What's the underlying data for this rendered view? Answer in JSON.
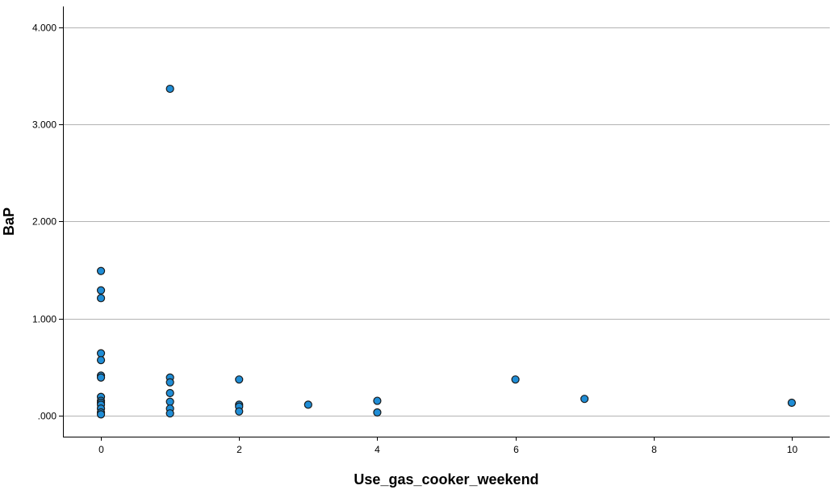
{
  "chart_data": {
    "type": "scatter",
    "title": "",
    "xlabel": "Use_gas_cooker_weekend",
    "ylabel": "BaP",
    "xlim": [
      -0.55,
      10.55
    ],
    "ylim": [
      -0.22,
      4.22
    ],
    "x_ticks": [
      0,
      2,
      4,
      6,
      8,
      10
    ],
    "x_tick_labels": [
      "0",
      "2",
      "4",
      "6",
      "8",
      "10"
    ],
    "y_ticks": [
      0,
      1,
      2,
      3,
      4
    ],
    "y_tick_labels": [
      ".000",
      "1.000",
      "2.000",
      "3.000",
      "4.000"
    ],
    "grid": "horizontal",
    "point_color": "#1f8dd6",
    "points": [
      {
        "x": 0,
        "y": 1.49
      },
      {
        "x": 0,
        "y": 1.29
      },
      {
        "x": 0,
        "y": 1.21
      },
      {
        "x": 0,
        "y": 0.64
      },
      {
        "x": 0,
        "y": 0.57
      },
      {
        "x": 0,
        "y": 0.41
      },
      {
        "x": 0,
        "y": 0.39
      },
      {
        "x": 0,
        "y": 0.19
      },
      {
        "x": 0,
        "y": 0.15
      },
      {
        "x": 0,
        "y": 0.13
      },
      {
        "x": 0,
        "y": 0.11
      },
      {
        "x": 0,
        "y": 0.07
      },
      {
        "x": 0,
        "y": 0.03
      },
      {
        "x": 0,
        "y": 0.01
      },
      {
        "x": 1,
        "y": 3.37
      },
      {
        "x": 1,
        "y": 0.39
      },
      {
        "x": 1,
        "y": 0.34
      },
      {
        "x": 1,
        "y": 0.23
      },
      {
        "x": 1,
        "y": 0.14
      },
      {
        "x": 1,
        "y": 0.07
      },
      {
        "x": 1,
        "y": 0.02
      },
      {
        "x": 2,
        "y": 0.37
      },
      {
        "x": 2,
        "y": 0.11
      },
      {
        "x": 2,
        "y": 0.09
      },
      {
        "x": 2,
        "y": 0.04
      },
      {
        "x": 3,
        "y": 0.11
      },
      {
        "x": 4,
        "y": 0.15
      },
      {
        "x": 4,
        "y": 0.03
      },
      {
        "x": 6,
        "y": 0.37
      },
      {
        "x": 7,
        "y": 0.17
      },
      {
        "x": 10,
        "y": 0.13
      }
    ]
  }
}
